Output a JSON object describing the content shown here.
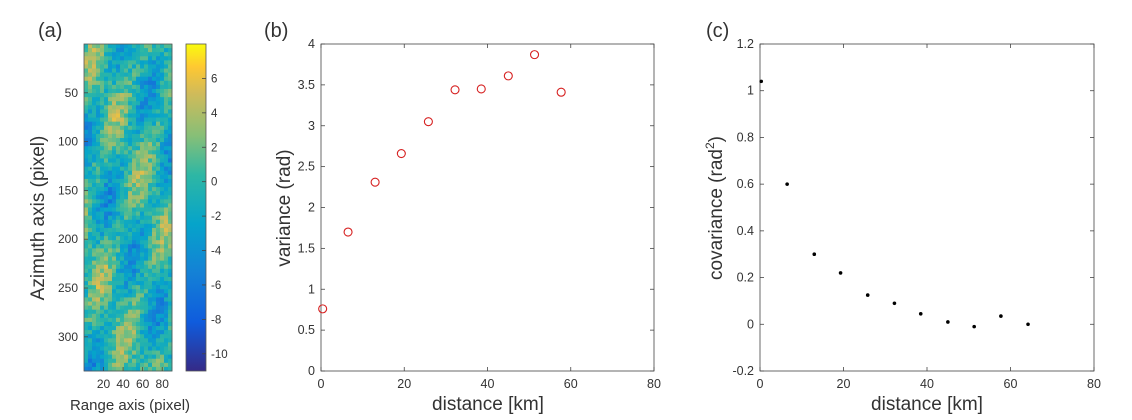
{
  "figure": {
    "panel_a": {
      "label": "(a)",
      "ylabel": "Azimuth axis (pixel)",
      "xlabel": "Range axis (pixel)",
      "xticks": [
        "20",
        "40",
        "60",
        "80"
      ],
      "yticks": [
        "50",
        "100",
        "150",
        "200",
        "250",
        "300"
      ],
      "colorbar_ticks": [
        "6",
        "4",
        "2",
        "0",
        "-2",
        "-4",
        "-6",
        "-8",
        "-10"
      ]
    },
    "panel_b": {
      "label": "(b)",
      "xlabel": "distance  [km]",
      "ylabel": "variance (rad)",
      "xticks": [
        "0",
        "20",
        "40",
        "60",
        "80"
      ],
      "yticks": [
        "0",
        "0.5",
        "1",
        "1.5",
        "2",
        "2.5",
        "3",
        "3.5",
        "4"
      ]
    },
    "panel_c": {
      "label": "(c)",
      "xlabel": "distance  [km]",
      "ylabel_main": "covariance (rad",
      "ylabel_sup": "2",
      "ylabel_end": ")",
      "xticks": [
        "0",
        "20",
        "40",
        "60",
        "80"
      ],
      "yticks": [
        "-0.2",
        "0",
        "0.2",
        "0.4",
        "0.6",
        "0.8",
        "1",
        "1.2"
      ]
    }
  },
  "chart_data": [
    {
      "type": "heatmap",
      "title": "(a)",
      "xlabel": "Range axis (pixel)",
      "ylabel": "Azimuth axis (pixel)",
      "xlim": [
        0,
        90
      ],
      "ylim": [
        0,
        335
      ],
      "y_reversed": true,
      "colorbar": {
        "colormap": "parula",
        "range": [
          -11,
          8
        ]
      },
      "description_values": "random phase field dominated by values between -4 and 4"
    },
    {
      "type": "scatter",
      "title": "(b)",
      "xlabel": "distance  [km]",
      "ylabel": "variance (rad)",
      "xlim": [
        0,
        80
      ],
      "ylim": [
        0,
        4
      ],
      "marker": "open-circle",
      "color": "#d62020",
      "x": [
        0.4,
        6.5,
        13,
        19.3,
        25.8,
        32.2,
        38.5,
        45,
        51.3,
        57.7
      ],
      "y": [
        0.76,
        1.7,
        2.31,
        2.66,
        3.05,
        3.44,
        3.45,
        3.61,
        3.87,
        3.41
      ]
    },
    {
      "type": "scatter",
      "title": "(c)",
      "xlabel": "distance  [km]",
      "ylabel": "covariance (rad2)",
      "xlim": [
        0,
        80
      ],
      "ylim": [
        -0.2,
        1.2
      ],
      "marker": "dot",
      "color": "#000000",
      "x": [
        0.3,
        6.5,
        13,
        19.3,
        25.8,
        32.2,
        38.5,
        45,
        51.3,
        57.7,
        64.2
      ],
      "y": [
        1.04,
        0.6,
        0.3,
        0.22,
        0.125,
        0.09,
        0.045,
        0.01,
        -0.01,
        0.035,
        0.0
      ]
    }
  ]
}
